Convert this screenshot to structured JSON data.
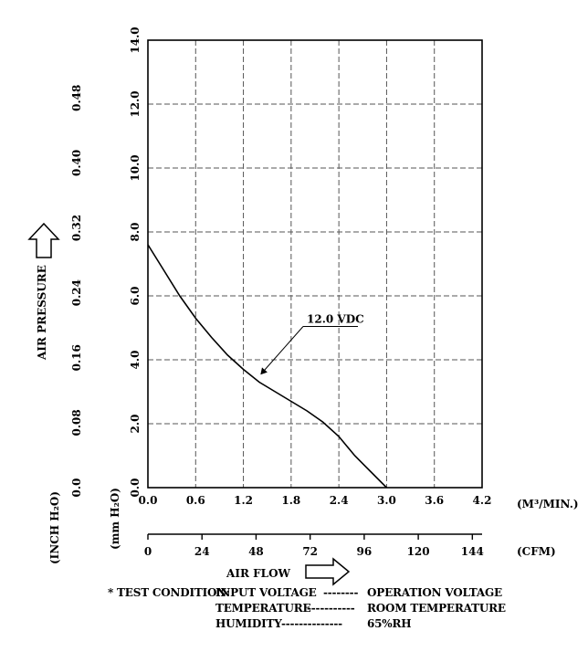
{
  "chart_data": {
    "type": "line",
    "title": "",
    "xlabel": "AIR FLOW",
    "ylabel": "AIR PRESSURE",
    "x_unit_primary": "(M³/MIN.)",
    "x_unit_secondary": "(CFM)",
    "y_unit_outer": "(INCH H₂O)",
    "y_unit_inner": "(mm H₂O)",
    "xlim": [
      0,
      4.2
    ],
    "ylim": [
      0,
      14
    ],
    "grid": true,
    "x_ticks_primary": [
      "0.0",
      "0.6",
      "1.2",
      "1.8",
      "2.4",
      "3.0",
      "3.6",
      "4.2"
    ],
    "x_ticks_secondary": [
      "0",
      "24",
      "48",
      "72",
      "96",
      "120",
      "144"
    ],
    "x_ticks_secondary_values": [
      0,
      24,
      48,
      72,
      96,
      120,
      144
    ],
    "y_ticks_mm": [
      "0.0",
      "2.0",
      "4.0",
      "6.0",
      "8.0",
      "10.0",
      "12.0",
      "14.0"
    ],
    "y_ticks_inch": [
      "0.0",
      "0.08",
      "0.16",
      "0.24",
      "0.32",
      "0.40",
      "0.48"
    ],
    "y_ticks_inch_values": [
      0,
      0.08,
      0.16,
      0.24,
      0.32,
      0.4,
      0.48
    ],
    "series": [
      {
        "name": "12.0 VDC",
        "x": [
          0.0,
          0.2,
          0.4,
          0.6,
          0.8,
          1.0,
          1.2,
          1.4,
          1.6,
          1.8,
          2.0,
          2.2,
          2.4,
          2.6,
          2.8,
          3.0
        ],
        "y": [
          7.6,
          6.8,
          6.0,
          5.3,
          4.7,
          4.15,
          3.7,
          3.3,
          3.0,
          2.7,
          2.4,
          2.05,
          1.6,
          1.0,
          0.5,
          0.0
        ]
      }
    ],
    "annotation": {
      "text": "12.0 VDC",
      "x": 1.4,
      "y": 3.5
    }
  },
  "test_condition": {
    "lead": "* TEST CONDITION:",
    "rows": [
      {
        "label": "INPUT VOLTAGE",
        "dashes": "--------",
        "value": "OPERATION VOLTAGE"
      },
      {
        "label": "TEMPERATURE",
        "dashes": "-----------",
        "value": "ROOM TEMPERATURE"
      },
      {
        "label": "HUMIDITY",
        "dashes": "--------------",
        "value": "65%RH"
      }
    ]
  }
}
